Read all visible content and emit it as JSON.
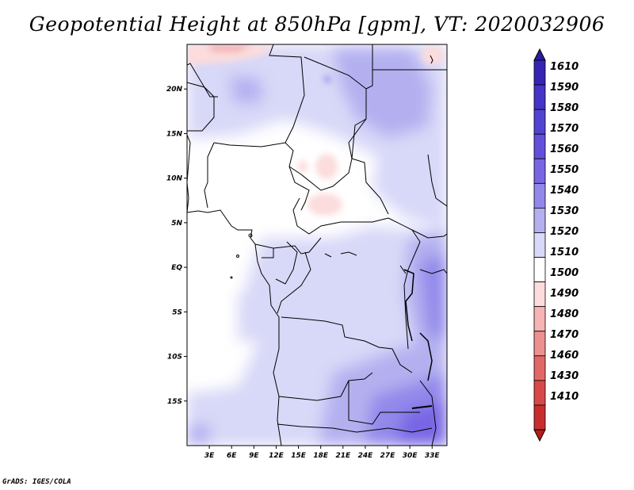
{
  "title": "Geopotential Height at 850hPa [gpm], VT: 2020032906",
  "credit": "GrADS: IGES/COLA",
  "map": {
    "lon_range": [
      0,
      35
    ],
    "lat_range": [
      -20,
      25
    ],
    "lat_ticks": [
      {
        "value": 20,
        "label": "20N"
      },
      {
        "value": 15,
        "label": "15N"
      },
      {
        "value": 10,
        "label": "10N"
      },
      {
        "value": 5,
        "label": "5N"
      },
      {
        "value": 0,
        "label": "EQ"
      },
      {
        "value": -5,
        "label": "5S"
      },
      {
        "value": -10,
        "label": "10S"
      },
      {
        "value": -15,
        "label": "15S"
      }
    ],
    "lon_ticks": [
      {
        "value": 3,
        "label": "3E"
      },
      {
        "value": 6,
        "label": "6E"
      },
      {
        "value": 9,
        "label": "9E"
      },
      {
        "value": 12,
        "label": "12E"
      },
      {
        "value": 15,
        "label": "15E"
      },
      {
        "value": 18,
        "label": "18E"
      },
      {
        "value": 21,
        "label": "21E"
      },
      {
        "value": 24,
        "label": "24E"
      },
      {
        "value": 27,
        "label": "27E"
      },
      {
        "value": 30,
        "label": "30E"
      },
      {
        "value": 33,
        "label": "33E"
      }
    ]
  },
  "colorbar": {
    "levels": [
      "1610",
      "1590",
      "1580",
      "1570",
      "1560",
      "1550",
      "1540",
      "1530",
      "1520",
      "1510",
      "1500",
      "1490",
      "1480",
      "1470",
      "1460",
      "1430",
      "1410"
    ],
    "colors": [
      "#2b1c9c",
      "#3624b4",
      "#4534c8",
      "#5244d2",
      "#6250dc",
      "#7866e4",
      "#9288ea",
      "#b4b0f0",
      "#d8d8f8",
      "#ffffff",
      "#fcdcdc",
      "#f6b4b4",
      "#ec9090",
      "#e26868",
      "#d84848",
      "#c82e2e",
      "#b81c1c"
    ]
  }
}
